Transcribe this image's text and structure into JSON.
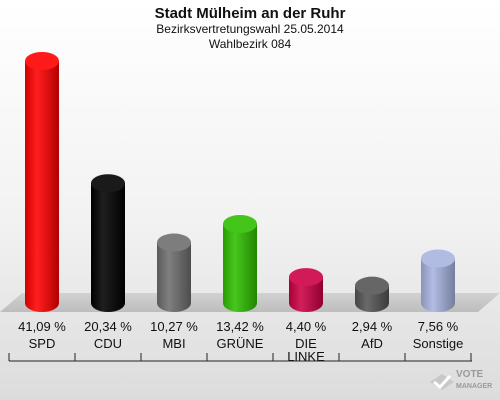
{
  "header": {
    "title": "Stadt Mülheim an der Ruhr",
    "subtitle": "Bezirksvertretungswahl 25.05.2014",
    "district": "Wahlbezirk 084"
  },
  "logo": {
    "brand": "VOTE",
    "sub": "MANAGER"
  },
  "chart_data": {
    "type": "bar",
    "title": "Stadt Mülheim an der Ruhr",
    "subtitle": "Bezirksvertretungswahl 25.05.2014 — Wahlbezirk 084",
    "categories": [
      "SPD",
      "CDU",
      "MBI",
      "GRÜNE",
      "DIE LINKE",
      "AfD",
      "Sonstige"
    ],
    "category_lines": [
      [
        "SPD"
      ],
      [
        "CDU"
      ],
      [
        "MBI"
      ],
      [
        "GRÜNE"
      ],
      [
        "DIE",
        "LINKE"
      ],
      [
        "AfD"
      ],
      [
        "Sonstige"
      ]
    ],
    "values": [
      41.09,
      20.34,
      10.27,
      13.42,
      4.4,
      2.94,
      7.56
    ],
    "value_labels": [
      "41,09 %",
      "20,34 %",
      "10,27 %",
      "13,42 %",
      "4,40 %",
      "2,94 %",
      "7,56 %"
    ],
    "colors": [
      "#ff0000",
      "#000000",
      "#6e6e6e",
      "#2fbf00",
      "#cc0044",
      "#555555",
      "#a8b4e0"
    ],
    "unit": "%",
    "grid": false,
    "legend": "none"
  }
}
